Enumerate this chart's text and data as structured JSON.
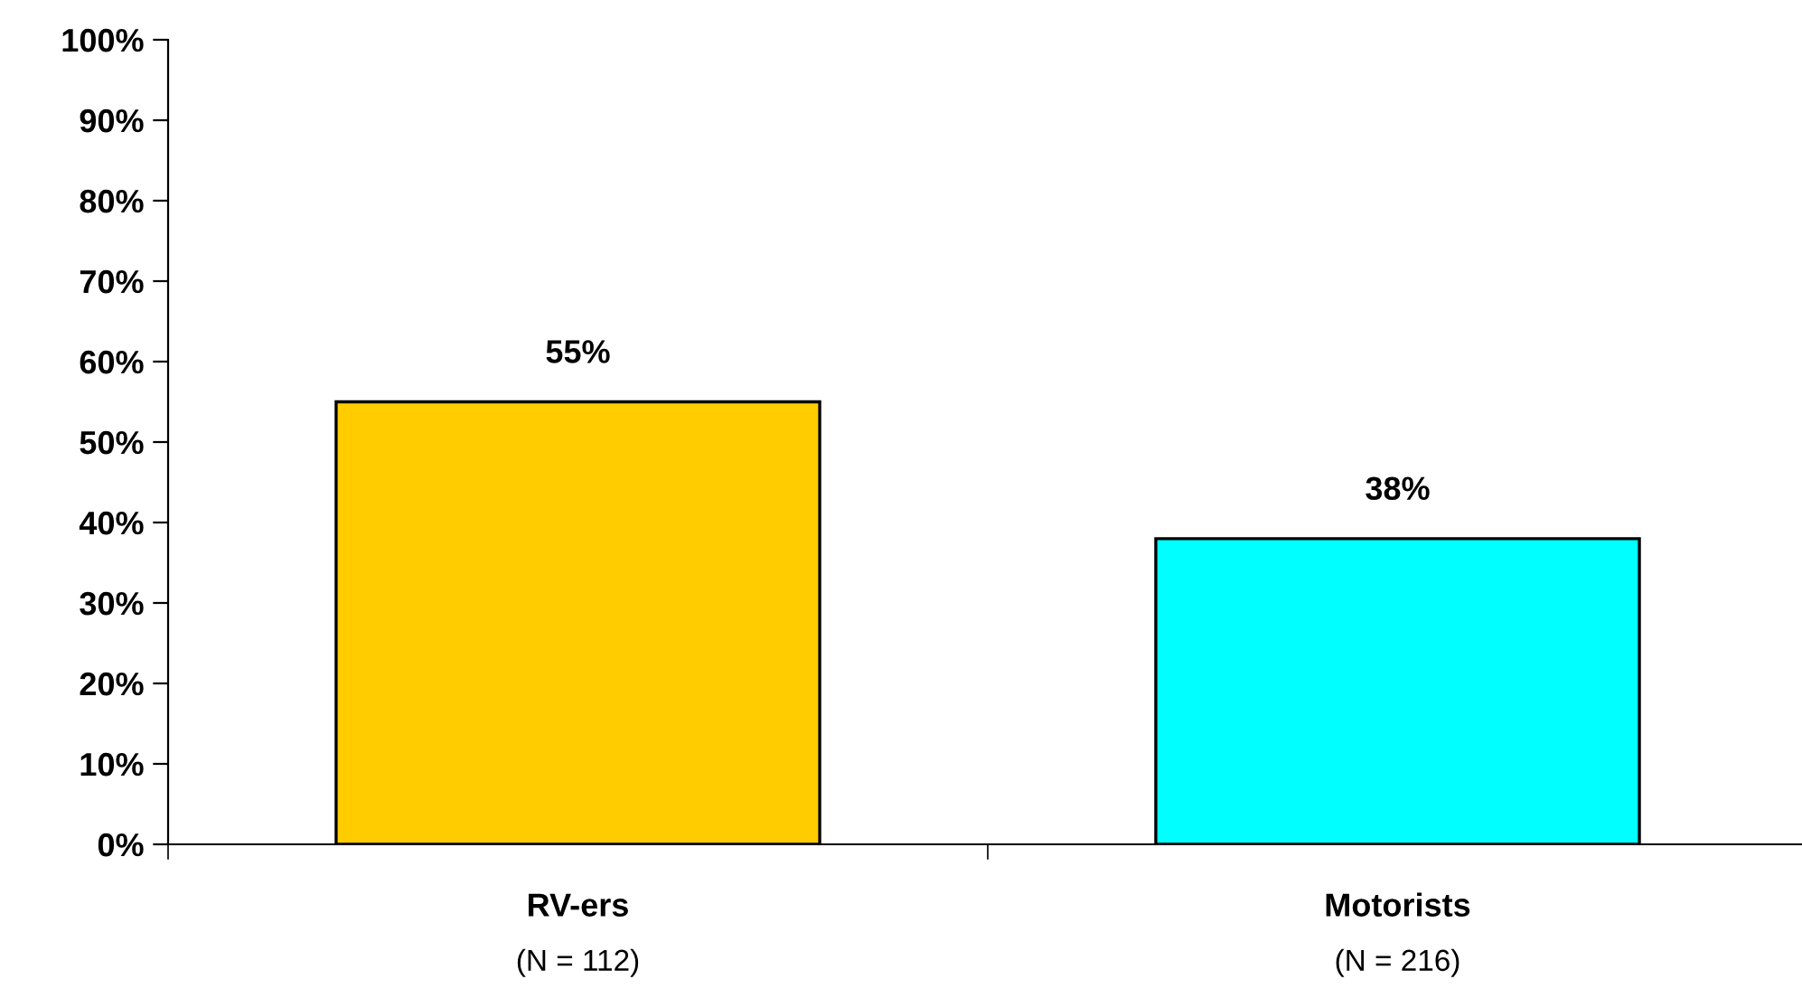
{
  "chart_data": {
    "type": "bar",
    "categories": [
      "RV-ers\n(N = 112)",
      "Motorists\n(N = 216)"
    ],
    "values": [
      55,
      38
    ],
    "colors": [
      "#ffcc00",
      "#00ffff"
    ],
    "value_labels": [
      "55%",
      "38%"
    ],
    "ylim": [
      0,
      100
    ],
    "yticks": [
      {
        "value": 0,
        "label": "0%"
      },
      {
        "value": 10,
        "label": "10%"
      },
      {
        "value": 20,
        "label": "20%"
      },
      {
        "value": 30,
        "label": "30%"
      },
      {
        "value": 40,
        "label": "40%"
      },
      {
        "value": 50,
        "label": "50%"
      },
      {
        "value": 60,
        "label": "60%"
      },
      {
        "value": 70,
        "label": "70%"
      },
      {
        "value": 80,
        "label": "80%"
      },
      {
        "value": 90,
        "label": "90%"
      },
      {
        "value": 100,
        "label": "100%"
      }
    ],
    "grid": false,
    "legend": false
  }
}
